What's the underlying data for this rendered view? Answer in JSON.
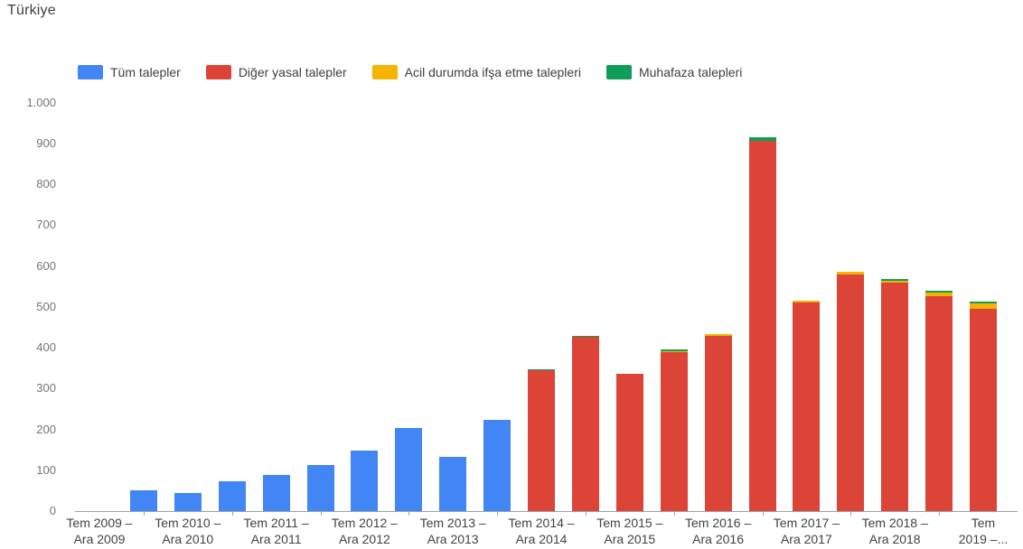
{
  "page": {
    "title": "Türkiye"
  },
  "chart_data": {
    "type": "bar",
    "stacked": true,
    "title": "Türkiye",
    "xlabel": "",
    "ylabel": "",
    "ylim": [
      0,
      1000
    ],
    "grid": false,
    "legend_position": "top",
    "y_ticks": [
      {
        "v": 0,
        "label": "0"
      },
      {
        "v": 100,
        "label": "100"
      },
      {
        "v": 200,
        "label": "200"
      },
      {
        "v": 300,
        "label": "300"
      },
      {
        "v": 400,
        "label": "400"
      },
      {
        "v": 500,
        "label": "500"
      },
      {
        "v": 600,
        "label": "600"
      },
      {
        "v": 700,
        "label": "700"
      },
      {
        "v": 800,
        "label": "800"
      },
      {
        "v": 900,
        "label": "900"
      },
      {
        "v": 1000,
        "label": "1.000"
      }
    ],
    "series": [
      {
        "key": "all",
        "name": "Tüm talepler",
        "color": "#4285F4"
      },
      {
        "key": "other",
        "name": "Diğer yasal talepler",
        "color": "#DB4437"
      },
      {
        "key": "emergency",
        "name": "Acil durumda ifşa etme talepleri",
        "color": "#F4B400"
      },
      {
        "key": "preservation",
        "name": "Muhafaza talepleri",
        "color": "#0F9D58"
      }
    ],
    "periods": [
      {
        "label": "Tem 2009 –\nAra 2009",
        "all": 0
      },
      {
        "all": 50
      },
      {
        "label": "Tem 2010 –\nAra 2010",
        "all": 44
      },
      {
        "all": 73
      },
      {
        "label": "Tem 2011 –\nAra 2011",
        "all": 88
      },
      {
        "all": 113
      },
      {
        "label": "Tem 2012 –\nAra 2012",
        "all": 148
      },
      {
        "all": 203
      },
      {
        "label": "Tem 2013 –\nAra 2013",
        "all": 133
      },
      {
        "all": 223
      },
      {
        "label": "Tem 2014 –\nAra 2014",
        "other": 344,
        "emergency": 0,
        "preservation": 3
      },
      {
        "other": 426,
        "emergency": 0,
        "preservation": 2
      },
      {
        "label": "Tem 2015 –\nAra 2015",
        "other": 335,
        "emergency": 0,
        "preservation": 0
      },
      {
        "other": 388,
        "emergency": 3,
        "preservation": 4
      },
      {
        "label": "Tem 2016 –\nAra 2016",
        "other": 429,
        "emergency": 4,
        "preservation": 0
      },
      {
        "other": 906,
        "emergency": 0,
        "preservation": 8
      },
      {
        "label": "Tem 2017 –\nAra 2017",
        "other": 511,
        "emergency": 3,
        "preservation": 0
      },
      {
        "other": 580,
        "emergency": 5,
        "preservation": 0
      },
      {
        "label": "Tem 2018 –\nAra 2018",
        "other": 559,
        "emergency": 5,
        "preservation": 5
      },
      {
        "other": 527,
        "emergency": 7,
        "preservation": 5
      },
      {
        "label": "Tem\n2019 –...",
        "other": 496,
        "emergency": 12,
        "preservation": 4
      }
    ]
  }
}
